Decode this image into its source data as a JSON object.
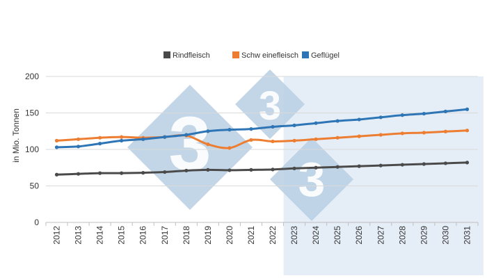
{
  "chart_data": {
    "type": "line",
    "title": "",
    "xlabel": "",
    "ylabel": "in Mio. Tonnen",
    "x": [
      "2012",
      "2013",
      "2014",
      "2015",
      "2016",
      "2017",
      "2018",
      "2019",
      "2020",
      "2021",
      "2022",
      "2023",
      "2024",
      "2025",
      "2026",
      "2027",
      "2028",
      "2029",
      "2030",
      "2031"
    ],
    "ylim": [
      0,
      200
    ],
    "yticks": [
      "0",
      "50",
      "100",
      "150",
      "200"
    ],
    "grid": true,
    "legend_position": "top",
    "projection_shaded_from": "2023",
    "series": [
      {
        "name": "Rindfleisch",
        "color": "#4a4a4a",
        "values": [
          65.5,
          66.5,
          67.5,
          67.5,
          68,
          69,
          71,
          72,
          71.5,
          72,
          72.5,
          74,
          75,
          76,
          77,
          78,
          79,
          80,
          81,
          82
        ]
      },
      {
        "name": "Schw einefleisch",
        "color": "#ed7d31",
        "values": [
          112,
          114,
          116,
          117,
          116,
          117,
          119,
          107,
          102,
          113,
          111,
          112,
          114,
          116,
          118,
          120,
          122,
          123,
          124.5,
          126
        ]
      },
      {
        "name": "Geflügel",
        "color": "#2e75b6",
        "values": [
          103,
          104,
          108,
          112,
          114,
          117,
          120,
          125,
          127,
          128,
          131,
          133,
          136,
          139,
          141,
          144,
          147,
          149,
          152,
          155
        ]
      }
    ],
    "watermark_color": "#b8cfe3"
  }
}
